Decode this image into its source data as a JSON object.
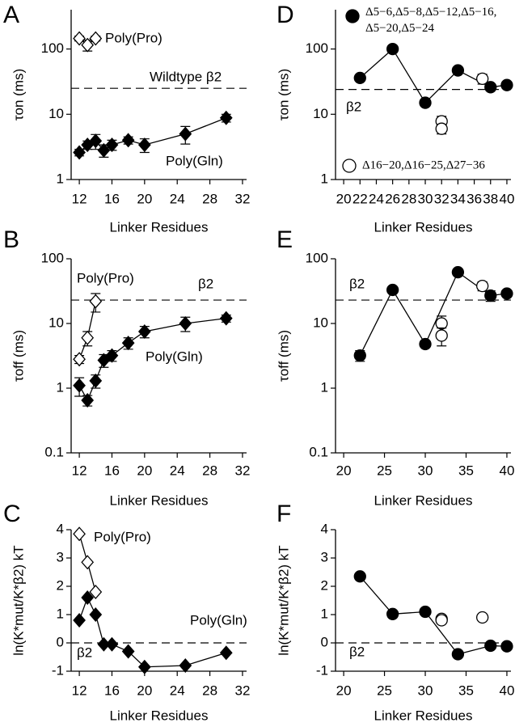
{
  "chart_data": [
    {
      "label": "A",
      "type": "line",
      "xlabel": "Linker Residues",
      "ylabel": "τon (ms)",
      "log_y": true,
      "xlim": [
        11,
        32.5
      ],
      "xticks": [
        12,
        16,
        20,
        24,
        28,
        32
      ],
      "ylim": [
        1,
        400
      ],
      "yticks": [
        1,
        10,
        100
      ],
      "reference": 25,
      "annotations": [
        "Wildtype β2"
      ],
      "series": [
        {
          "name": "Poly(Pro)",
          "x": [
            12,
            13,
            14
          ],
          "values": [
            145,
            115,
            145
          ],
          "errors": [
            12,
            22,
            12
          ],
          "color": "#000000",
          "marker": "diamond",
          "filled": false,
          "line": true
        },
        {
          "name": "Poly(Gln)",
          "x": [
            12,
            13,
            14,
            15,
            16,
            18,
            20,
            25,
            30
          ],
          "values": [
            2.6,
            3.4,
            3.9,
            2.8,
            3.4,
            4.0,
            3.4,
            5.0,
            8.8
          ],
          "errors": [
            0.3,
            0.5,
            1.0,
            0.6,
            0.6,
            0.5,
            0.8,
            1.5,
            1.2
          ],
          "color": "#000000",
          "marker": "diamond",
          "filled": true,
          "line": true
        }
      ]
    },
    {
      "label": "B",
      "type": "line",
      "xlabel": "Linker Residues",
      "ylabel": "τoff (ms)",
      "log_y": true,
      "xlim": [
        11,
        32.5
      ],
      "xticks": [
        12,
        16,
        20,
        24,
        28,
        32
      ],
      "ylim": [
        0.1,
        100
      ],
      "yticks": [
        0.1,
        1,
        10,
        100
      ],
      "reference": 23,
      "annotations": [
        "β2"
      ],
      "series": [
        {
          "name": "Poly(Pro)",
          "x": [
            12,
            13,
            14
          ],
          "values": [
            2.8,
            6,
            22
          ],
          "errors": [
            0.4,
            1.5,
            7
          ],
          "color": "#000000",
          "marker": "diamond",
          "filled": false,
          "line": true
        },
        {
          "name": "Poly(Gln)",
          "x": [
            12,
            13,
            14,
            15,
            16,
            18,
            20,
            25,
            30
          ],
          "values": [
            1.1,
            0.65,
            1.3,
            2.7,
            3.2,
            5,
            7.5,
            10,
            12
          ],
          "errors": [
            0.35,
            0.12,
            0.3,
            0.6,
            0.6,
            1,
            1.5,
            2.5,
            1.5
          ],
          "color": "#000000",
          "marker": "diamond",
          "filled": true,
          "line": true
        }
      ]
    },
    {
      "label": "C",
      "type": "line",
      "xlabel": "Linker Residues",
      "ylabel": "ln(K*mut/K*β2)  kT",
      "log_y": false,
      "xlim": [
        11,
        32.5
      ],
      "xticks": [
        12,
        16,
        20,
        24,
        28,
        32
      ],
      "ylim": [
        -1,
        4
      ],
      "yticks": [
        -1,
        0,
        1,
        2,
        3,
        4
      ],
      "reference": 0,
      "annotations": [
        "β2"
      ],
      "series": [
        {
          "name": "Poly(Pro)",
          "x": [
            12,
            13,
            14
          ],
          "values": [
            3.85,
            2.85,
            1.8
          ],
          "color": "#000000",
          "marker": "diamond",
          "filled": false,
          "line": true
        },
        {
          "name": "Poly(Gln)",
          "x": [
            12,
            13,
            14,
            15,
            16,
            18,
            20,
            25,
            30
          ],
          "values": [
            0.8,
            1.6,
            1.0,
            -0.05,
            -0.05,
            -0.3,
            -0.85,
            -0.8,
            -0.35
          ],
          "color": "#000000",
          "marker": "diamond",
          "filled": true,
          "line": true
        }
      ]
    },
    {
      "label": "D",
      "type": "line",
      "xlabel": "Linker Residues",
      "ylabel": "τon (ms)",
      "log_y": true,
      "xlim": [
        19,
        40.5
      ],
      "xticks": [
        20,
        22,
        24,
        26,
        28,
        30,
        32,
        34,
        36,
        38,
        40
      ],
      "ylim": [
        1,
        400
      ],
      "yticks": [
        1,
        10,
        100
      ],
      "reference": 24,
      "annotations": [
        "β2"
      ],
      "series": [
        {
          "name": "Δ5−6,Δ5−8,Δ5−12,Δ5−16,Δ5−20,Δ5−24",
          "x": [
            22,
            26,
            30,
            34,
            38,
            40
          ],
          "values": [
            36,
            100,
            15,
            47,
            26,
            28
          ],
          "errors": [
            null,
            null,
            null,
            null,
            3,
            null
          ],
          "color": "#000000",
          "marker": "circle",
          "filled": true,
          "line": true
        },
        {
          "name": "Δ16−20,Δ16−25,Δ27−36",
          "x": [
            32,
            32,
            37
          ],
          "values": [
            7.8,
            6,
            35
          ],
          "errors": [
            1.5,
            1,
            6
          ],
          "color": "#000000",
          "marker": "circle",
          "filled": false,
          "line": false
        }
      ]
    },
    {
      "label": "E",
      "type": "line",
      "xlabel": "Linker Residues",
      "ylabel": "τoff (ms)",
      "log_y": true,
      "xlim": [
        19,
        40.5
      ],
      "xticks": [
        20,
        25,
        30,
        35,
        40
      ],
      "ylim": [
        0.1,
        100
      ],
      "yticks": [
        0.1,
        1,
        10,
        100
      ],
      "reference": 23,
      "annotations": [
        "β2"
      ],
      "series": [
        {
          "x": [
            22,
            26,
            30,
            34,
            38,
            40
          ],
          "values": [
            3.2,
            33,
            4.8,
            62,
            27,
            29
          ],
          "errors": [
            0.6,
            null,
            null,
            null,
            5,
            null
          ],
          "color": "#000000",
          "marker": "circle",
          "filled": true,
          "line": true
        },
        {
          "x": [
            32,
            32,
            37
          ],
          "values": [
            10,
            6.5,
            38
          ],
          "errors": [
            3,
            2,
            6
          ],
          "color": "#000000",
          "marker": "circle",
          "filled": false,
          "line": false
        }
      ]
    },
    {
      "label": "F",
      "type": "line",
      "xlabel": "Linker Residues",
      "ylabel": "ln(K*mut/K*β2)  kT",
      "log_y": false,
      "xlim": [
        19,
        40.5
      ],
      "xticks": [
        20,
        25,
        30,
        35,
        40
      ],
      "ylim": [
        -1,
        4
      ],
      "yticks": [
        -1,
        0,
        1,
        2,
        3,
        4
      ],
      "reference": 0,
      "annotations": [
        "β2"
      ],
      "series": [
        {
          "x": [
            22,
            26,
            30,
            34,
            38,
            40
          ],
          "values": [
            2.35,
            1.02,
            1.1,
            -0.4,
            -0.1,
            -0.12
          ],
          "color": "#000000",
          "marker": "circle",
          "filled": true,
          "line": true
        },
        {
          "x": [
            32,
            32,
            37
          ],
          "values": [
            0.85,
            0.8,
            0.9
          ],
          "color": "#000000",
          "marker": "circle",
          "filled": false,
          "line": false
        }
      ]
    }
  ]
}
